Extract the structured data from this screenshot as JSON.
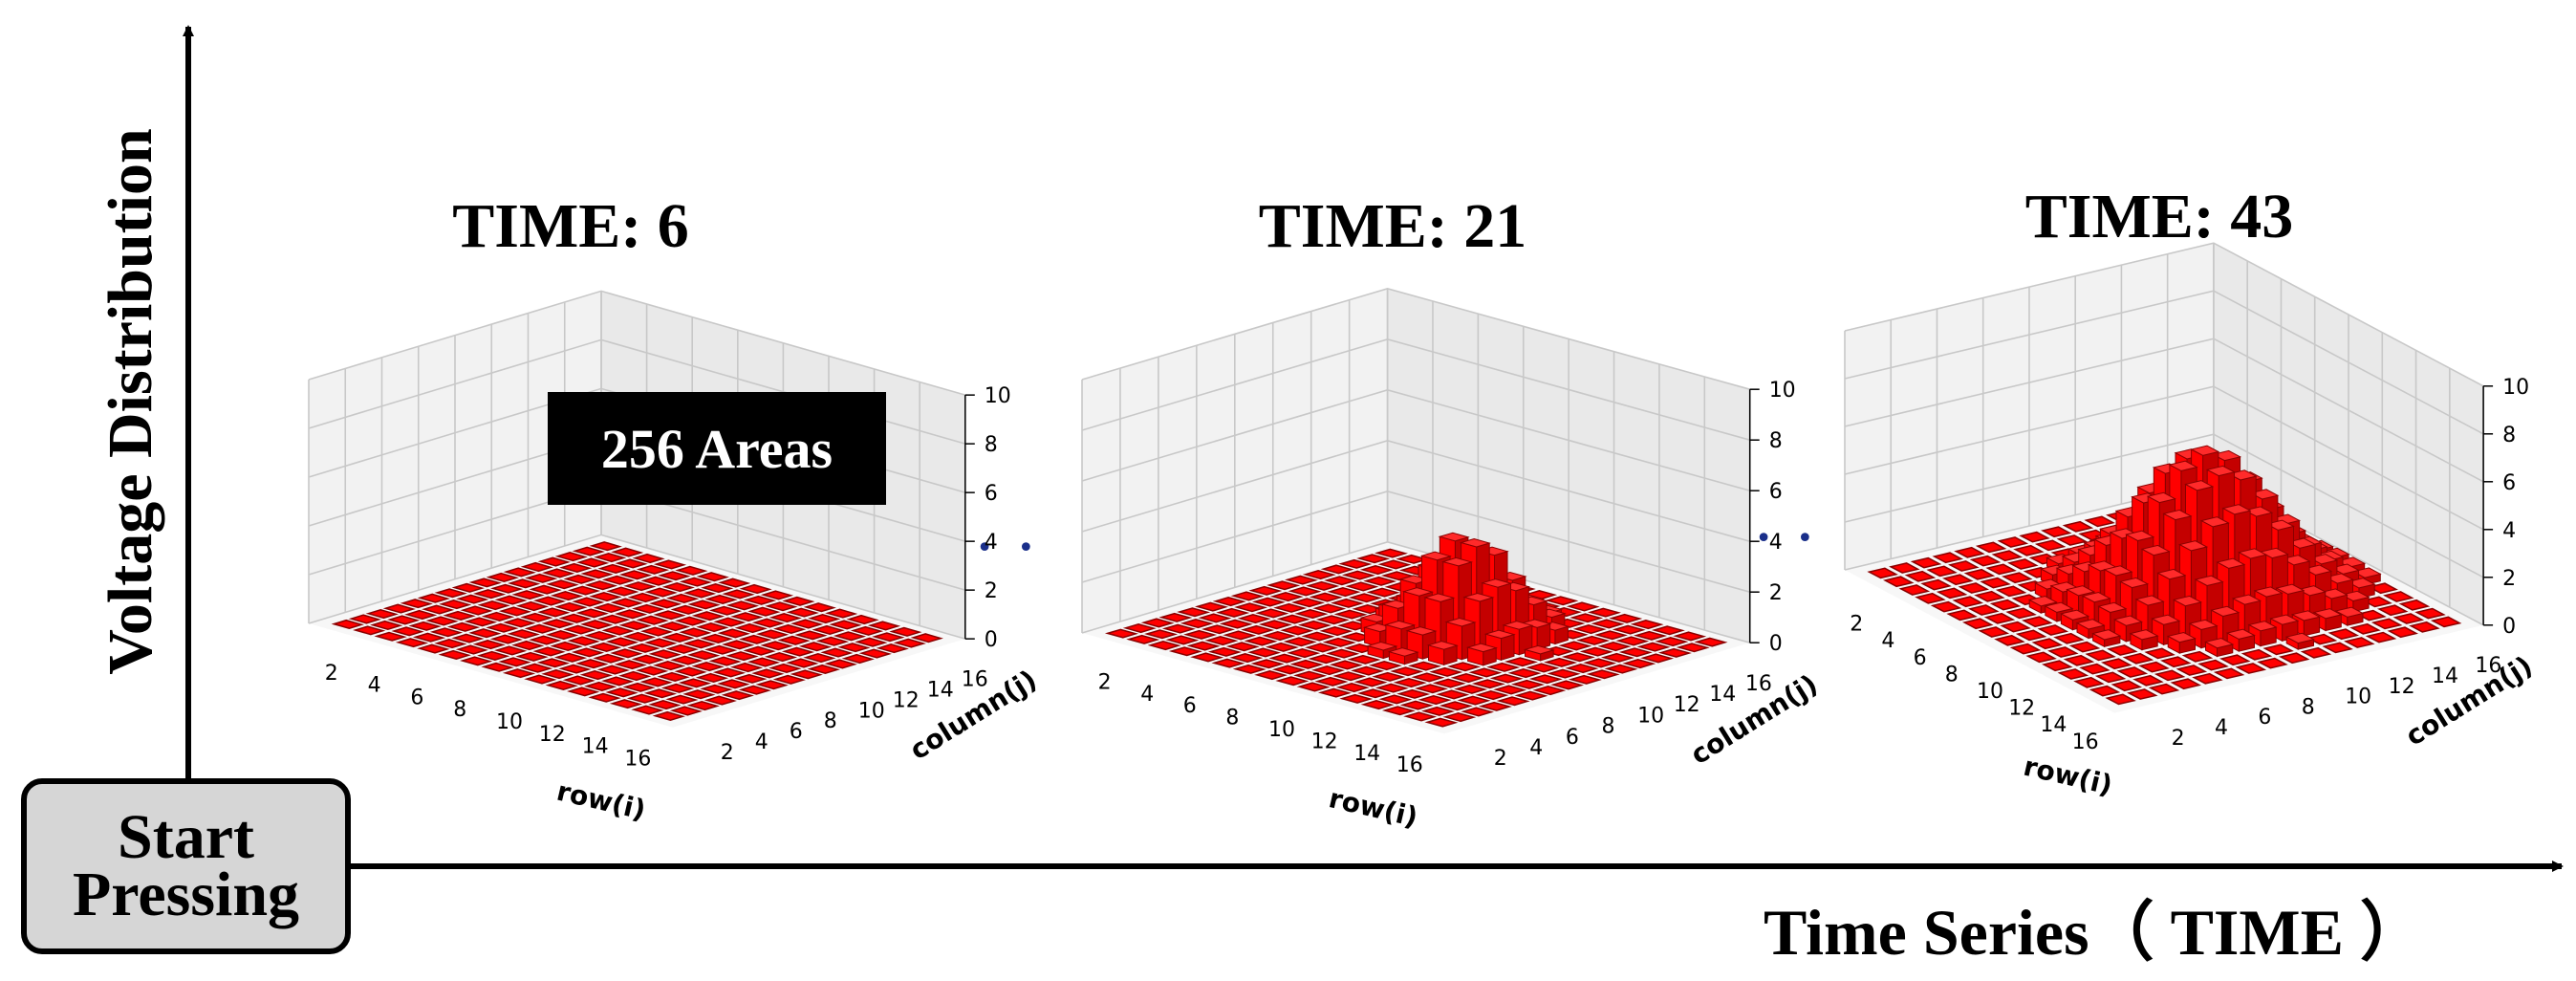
{
  "figure": {
    "y_axis_label": "Voltage Distribution",
    "x_axis_label": "Time Series（ TIME ）",
    "start_label_line1": "Start",
    "start_label_line2": "Pressing",
    "areas_label": "256 Areas",
    "ellipsis": "• • •"
  },
  "colors": {
    "bar": "#ff0000",
    "bar_side": "#c40000",
    "bar_dark": "#8a0000",
    "pane": "#f2f2f2",
    "grid": "#c8c8c8",
    "box": "#d6d6d6"
  },
  "chart_data": [
    {
      "type": "bar3d",
      "title": "TIME: 6",
      "xlabel": "row(i)",
      "ylabel": "column(j)",
      "x_ticks": [
        "2",
        "4",
        "6",
        "8",
        "10",
        "12",
        "14",
        "16"
      ],
      "y_ticks": [
        "2",
        "4",
        "6",
        "8",
        "10",
        "12",
        "14",
        "16"
      ],
      "z_ticks": [
        "0",
        "2",
        "4",
        "6",
        "8",
        "10"
      ],
      "zlim": [
        0,
        10
      ],
      "grid": true,
      "peak": {
        "row": 9,
        "col": 10,
        "height": 0,
        "sigma_row": 1.6,
        "sigma_col": 1.6
      }
    },
    {
      "type": "bar3d",
      "title": "TIME: 21",
      "xlabel": "row(i)",
      "ylabel": "column(j)",
      "x_ticks": [
        "2",
        "4",
        "6",
        "8",
        "10",
        "12",
        "14",
        "16"
      ],
      "y_ticks": [
        "2",
        "4",
        "6",
        "8",
        "10",
        "12",
        "14",
        "16"
      ],
      "z_ticks": [
        "0",
        "2",
        "4",
        "6",
        "8",
        "10"
      ],
      "zlim": [
        0,
        10
      ],
      "grid": true,
      "peak": {
        "row": 9,
        "col": 9.5,
        "height": 4,
        "sigma_row": 1.5,
        "sigma_col": 1.8
      }
    },
    {
      "type": "bar3d",
      "title": "TIME: 43",
      "xlabel": "row(i)",
      "ylabel": "column(j)",
      "x_ticks": [
        "2",
        "4",
        "6",
        "8",
        "10",
        "12",
        "14",
        "16"
      ],
      "y_ticks": [
        "2",
        "4",
        "6",
        "8",
        "10",
        "12",
        "14",
        "16"
      ],
      "z_ticks": [
        "0",
        "2",
        "4",
        "6",
        "8",
        "10"
      ],
      "zlim": [
        0,
        10
      ],
      "grid": true,
      "peak": {
        "row": 8.5,
        "col": 9.5,
        "height": 6,
        "sigma_row": 2.4,
        "sigma_col": 2.6
      }
    }
  ]
}
